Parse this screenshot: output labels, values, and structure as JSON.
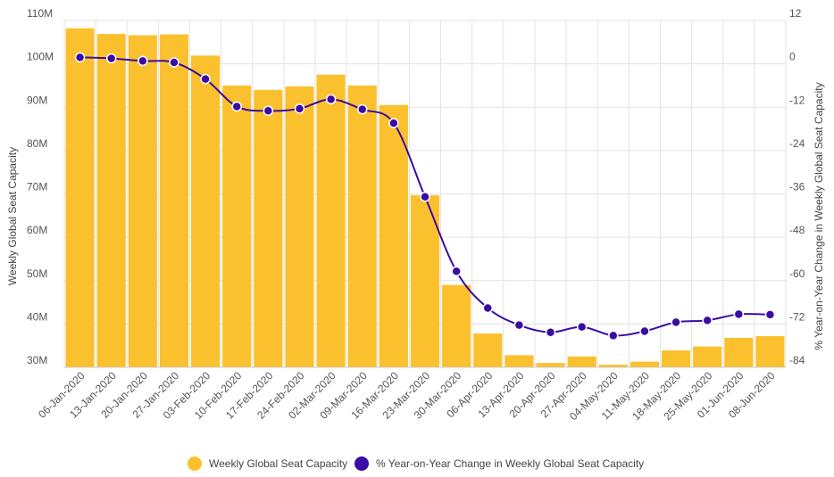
{
  "chart_data": {
    "type": "bar+line",
    "title": "",
    "xlabel": "",
    "categories": [
      "06-Jan-2020",
      "13-Jan-2020",
      "20-Jan-2020",
      "27-Jan-2020",
      "03-Feb-2020",
      "10-Feb-2020",
      "17-Feb-2020",
      "24-Feb-2020",
      "02-Mar-2020",
      "09-Mar-2020",
      "16-Mar-2020",
      "23-Mar-2020",
      "30-Mar-2020",
      "06-Apr-2020",
      "13-Apr-2020",
      "20-Apr-2020",
      "27-Apr-2020",
      "04-May-2020",
      "11-May-2020",
      "18-May-2020",
      "25-May-2020",
      "01-Jun-2020",
      "08-Jun-2020"
    ],
    "series": [
      {
        "name": "Weekly Global Seat Capacity",
        "type": "bar",
        "axis": "left",
        "color": "#FBC02D",
        "values": [
          108.2,
          106.9,
          106.6,
          106.8,
          101.9,
          95.0,
          94.0,
          94.8,
          97.5,
          95.0,
          90.5,
          69.7,
          49.0,
          37.8,
          32.8,
          31.0,
          32.5,
          30.6,
          31.3,
          33.9,
          34.8,
          36.8,
          37.2
        ]
      },
      {
        "name": "% Year-on-Year Change in Weekly Global Seat Capacity",
        "type": "line",
        "axis": "right",
        "color": "#3A0CA3",
        "values": [
          1.8,
          1.5,
          0.8,
          0.4,
          -4.2,
          -11.8,
          -13.0,
          -12.4,
          -9.8,
          -12.6,
          -16.4,
          -36.8,
          -57.4,
          -67.6,
          -72.3,
          -74.3,
          -72.8,
          -75.2,
          -74.0,
          -71.5,
          -71.0,
          -69.3,
          -69.4
        ]
      }
    ],
    "left_axis": {
      "label": "Weekly Global Seat Capacity",
      "ylim": [
        30,
        110
      ],
      "ticks": [
        30,
        40,
        50,
        60,
        70,
        80,
        90,
        100,
        110
      ],
      "tick_labels": [
        "30M",
        "40M",
        "50M",
        "60M",
        "70M",
        "80M",
        "90M",
        "100M",
        "110M"
      ]
    },
    "right_axis": {
      "label": "% Year-on-Year Change in Weekly Global Seat Capacity",
      "ylim": [
        -84,
        12
      ],
      "ticks": [
        -84,
        -72,
        -60,
        -48,
        -36,
        -24,
        -12,
        0,
        12
      ],
      "tick_labels": [
        "-84",
        "-72",
        "-60",
        "-48",
        "-36",
        "-24",
        "-12",
        "0",
        "12"
      ]
    },
    "grid": true,
    "legend_position": "bottom-center"
  }
}
